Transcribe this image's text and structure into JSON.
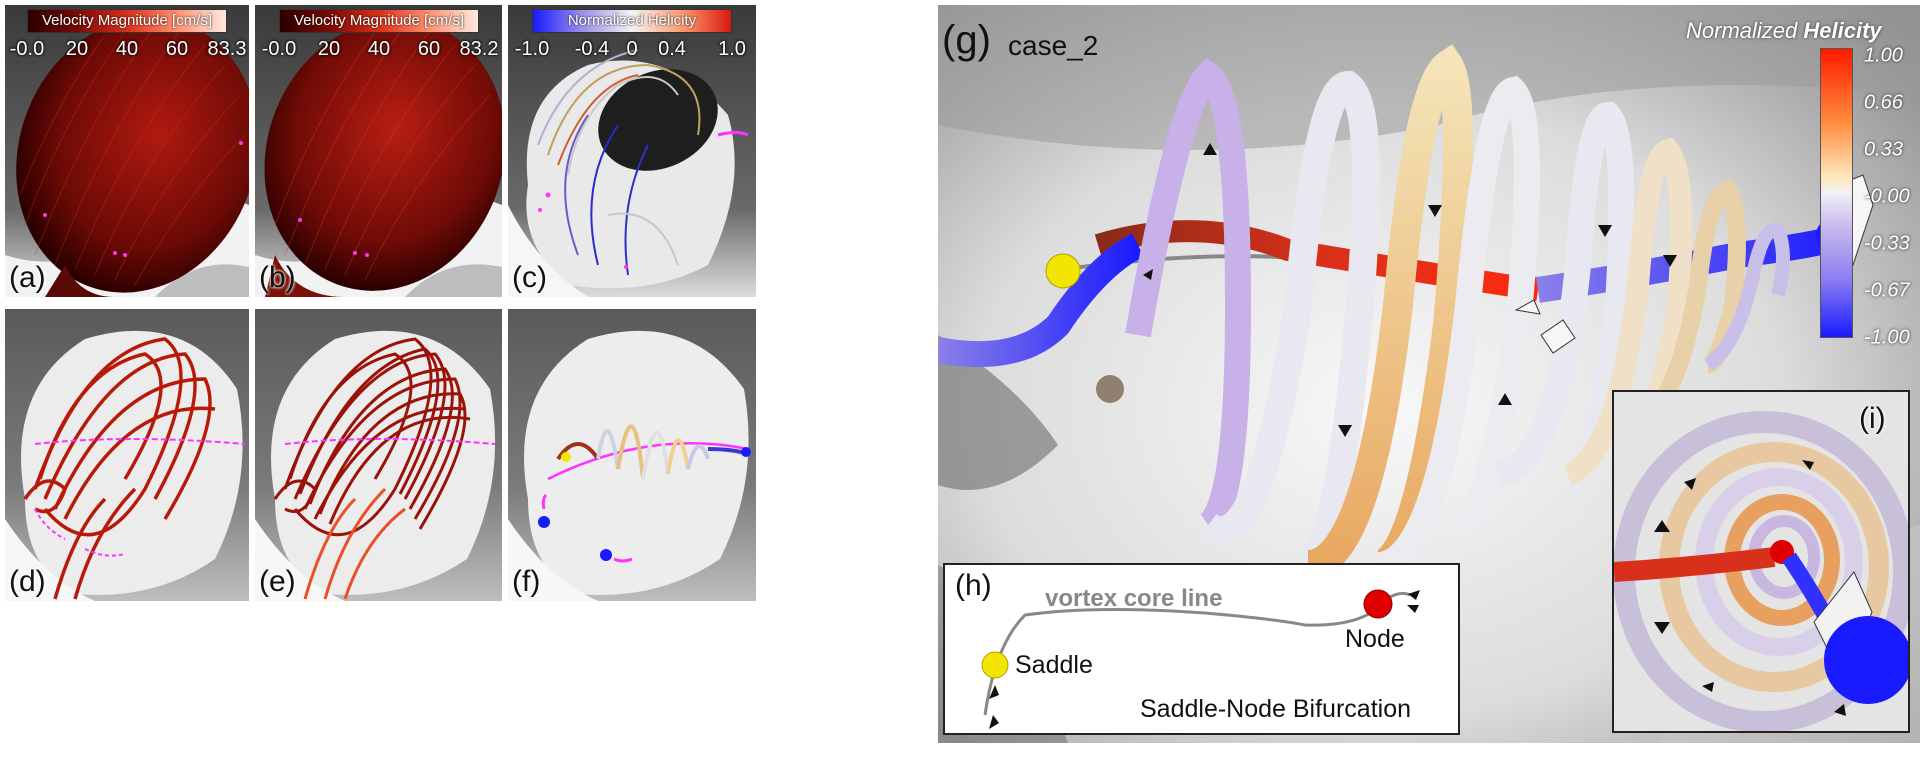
{
  "panels": {
    "a": {
      "label": "(a)",
      "colorbar": {
        "title": "Velocity Magnitude [cm/s]",
        "ticks": [
          "-0.0",
          "20",
          "40",
          "60",
          "83.3"
        ]
      }
    },
    "b": {
      "label": "(b)",
      "colorbar": {
        "title": "Velocity Magnitude [cm/s]",
        "ticks": [
          "-0.0",
          "20",
          "40",
          "60",
          "83.2"
        ]
      }
    },
    "c": {
      "label": "(c)",
      "colorbar": {
        "title": "Normalized Helicity",
        "ticks": [
          "-1.0",
          "-0.4",
          "0",
          "0.4",
          "1.0"
        ]
      }
    },
    "d": {
      "label": "(d)"
    },
    "e": {
      "label": "(e)"
    },
    "f": {
      "label": "(f)"
    },
    "g": {
      "label": "(g)",
      "case": "case_2",
      "legend": {
        "title_italic": "Normalized",
        "title_bold": "Helicity",
        "ticks": [
          "1.00",
          "0.66",
          "0.33",
          "-0.00",
          "-0.33",
          "-0.67",
          "-1.00"
        ]
      }
    },
    "h": {
      "label": "(h)",
      "core_line_label": "vortex core line",
      "saddle_label": "Saddle",
      "node_label": "Node",
      "caption": "Saddle-Node Bifurcation"
    },
    "i": {
      "label": "(i)"
    }
  },
  "colors": {
    "velocity_dark": "#3a0000",
    "velocity_bright": "#ff2a10",
    "helicity_pos": "#ff1a00",
    "helicity_neg": "#1a1aff",
    "saddle": "#f2e600",
    "node": "#e00000",
    "seed_points": "#ff33ff"
  }
}
